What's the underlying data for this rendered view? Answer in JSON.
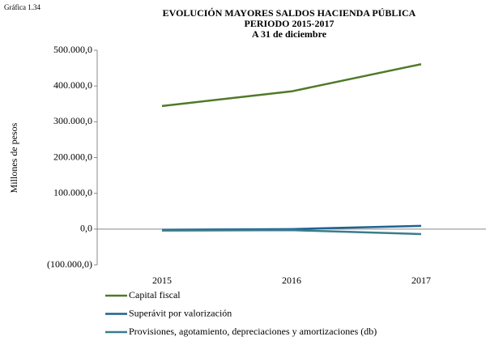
{
  "chart_data": {
    "type": "line",
    "label": "Gráfica 1.34",
    "title": [
      "EVOLUCIÓN MAYORES SALDOS HACIENDA PÚBLICA",
      "PERIODO 2015-2017",
      "A 31 de diciembre"
    ],
    "y_label": "Millones  de pesos",
    "categories": [
      "2015",
      "2016",
      "2017"
    ],
    "series": [
      {
        "name": "Capital fiscal",
        "color": "#4f7a28",
        "values": [
          344000,
          385000,
          461000
        ]
      },
      {
        "name": "Superávit por valorización",
        "color": "#1f6391",
        "values": [
          -2000,
          0,
          9000
        ]
      },
      {
        "name": "Provisiones, agotamiento, depreciaciones y amortizaciones (db)",
        "color": "#3a7d8c",
        "values": [
          -4000,
          -3000,
          -14000
        ]
      }
    ],
    "ylim": [
      -100000,
      500000
    ],
    "yticks": [
      {
        "value": -100000,
        "label": "(100.000,0)"
      },
      {
        "value": 0,
        "label": "0,0"
      },
      {
        "value": 100000,
        "label": "100.000,0"
      },
      {
        "value": 200000,
        "label": "200.000,0"
      },
      {
        "value": 300000,
        "label": "300.000,0"
      },
      {
        "value": 400000,
        "label": "400.000,0"
      },
      {
        "value": 500000,
        "label": "500.000,0"
      }
    ],
    "legend": "bottom"
  }
}
